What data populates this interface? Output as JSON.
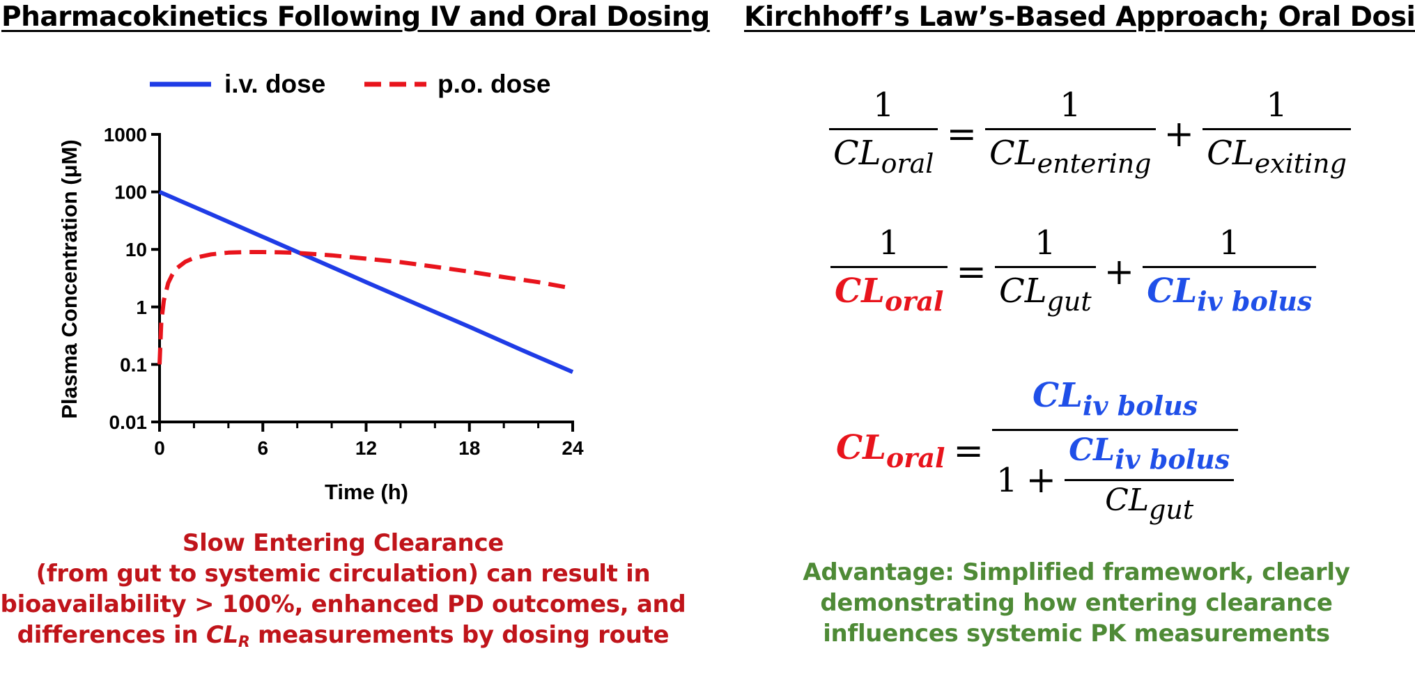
{
  "left_panel": {
    "title": "Pharmacokinetics Following IV and Oral Dosing",
    "caption": {
      "line1": "Slow Entering Clearance",
      "line2": "(from gut to systemic circulation) can result in",
      "line3": "bioavailability > 100%, enhanced PD outcomes, and",
      "line4_before": "differences in ",
      "line4_cl": "CL",
      "line4_sub": "R",
      "line4_after": " measurements by dosing route"
    }
  },
  "right_panel": {
    "title": "Kirchhoff’s Law’s-Based Approach; Oral Dosing",
    "eq1": {
      "one": "1",
      "cl": "CL",
      "oral": "oral",
      "entering": "entering",
      "exiting": "exiting",
      "equals": "=",
      "plus": "+"
    },
    "eq2": {
      "one": "1",
      "cl": "CL",
      "oral": "oral",
      "gut": "gut",
      "iv_bolus": "iv bolus",
      "equals": "=",
      "plus": "+"
    },
    "eq3": {
      "one": "1",
      "cl": "CL",
      "oral": "oral",
      "gut": "gut",
      "iv_bolus": "iv bolus",
      "equals": "=",
      "plus": "+"
    },
    "caption": {
      "line1": "Advantage: Simplified framework, clearly",
      "line2": "demonstrating how entering clearance",
      "line3": "influences systemic PK measurements"
    }
  },
  "chart_data": {
    "type": "line",
    "title": "",
    "xlabel": "Time (h)",
    "ylabel": "Plasma Concentration (μM)",
    "xlim": [
      0,
      24
    ],
    "ylim": [
      0.01,
      1000
    ],
    "yscale": "log",
    "x_ticks": [
      0,
      6,
      12,
      18,
      24
    ],
    "x_tick_labels": [
      "0",
      "6",
      "12",
      "18",
      "24"
    ],
    "y_ticks": [
      0.01,
      0.1,
      1,
      10,
      100,
      1000
    ],
    "y_tick_labels": [
      "0.01",
      "0.1",
      "1",
      "10",
      "100",
      "1000"
    ],
    "grid": false,
    "legend_position": "top",
    "series": [
      {
        "name": "i.v. dose",
        "color": "#1f3ce6",
        "style": "solid",
        "x": [
          0,
          3,
          6,
          9,
          12,
          15,
          18,
          21,
          24
        ],
        "y": [
          100,
          40.7,
          16.5,
          6.7,
          2.7,
          1.1,
          0.45,
          0.18,
          0.074
        ]
      },
      {
        "name": "p.o. dose",
        "color": "#e8141c",
        "style": "dashed",
        "x": [
          0,
          0.1,
          0.25,
          0.5,
          0.75,
          1,
          1.5,
          2,
          3,
          4,
          5,
          6,
          7,
          8,
          10,
          12,
          14,
          16,
          18,
          20,
          22,
          24
        ],
        "y": [
          0.1,
          0.55,
          1.3,
          2.6,
          3.7,
          4.7,
          6.1,
          7.1,
          8.2,
          8.8,
          9.0,
          9.0,
          8.9,
          8.7,
          7.9,
          6.9,
          6.0,
          5.0,
          4.1,
          3.3,
          2.7,
          2.1
        ]
      }
    ]
  }
}
